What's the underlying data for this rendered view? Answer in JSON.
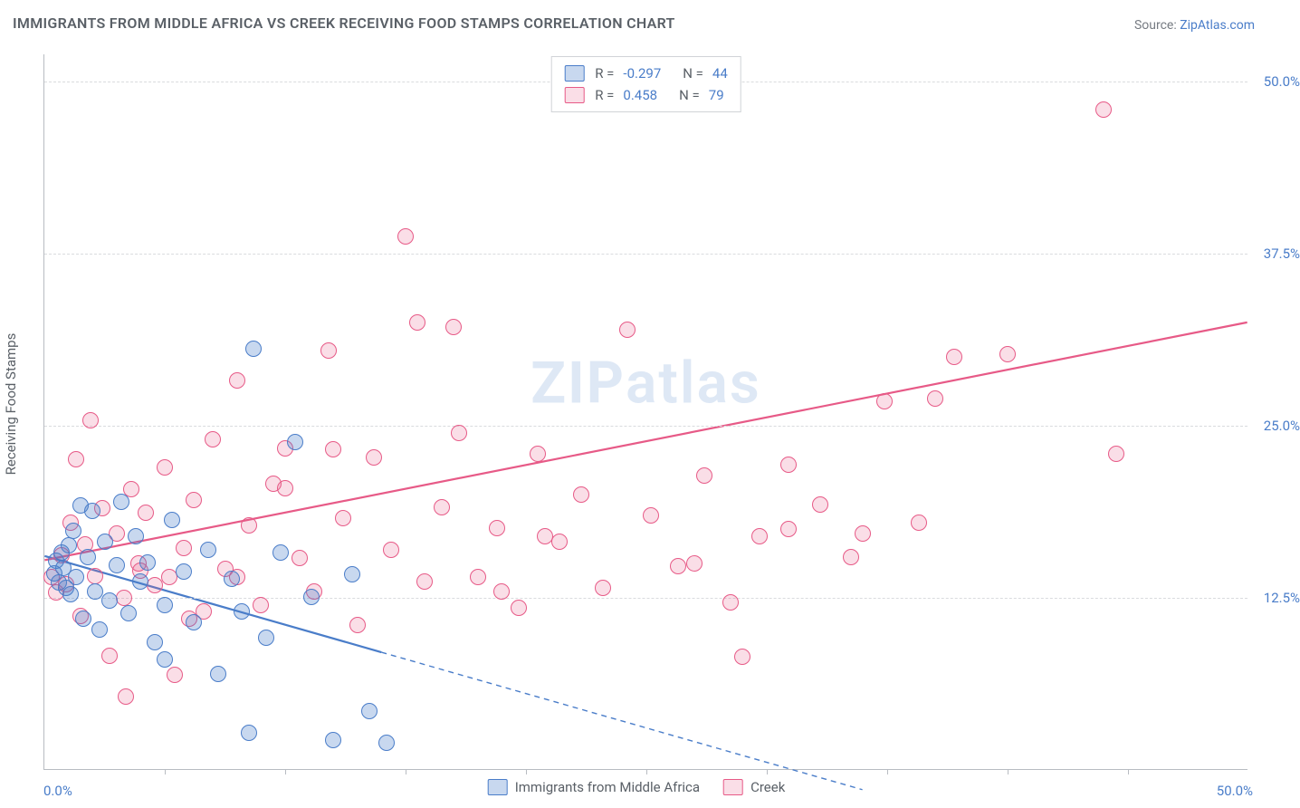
{
  "title": "IMMIGRANTS FROM MIDDLE AFRICA VS CREEK RECEIVING FOOD STAMPS CORRELATION CHART",
  "source_label": "Source:",
  "source_name": "ZipAtlas.com",
  "ylabel": "Receiving Food Stamps",
  "watermark": "ZIPatlas",
  "x_axis": {
    "min": 0,
    "max": 50,
    "label_min": "0.0%",
    "label_max": "50.0%",
    "tick_step": 5
  },
  "y_axis": {
    "min": 0,
    "max": 52,
    "ticks": [
      12.5,
      25.0,
      37.5,
      50.0
    ],
    "tick_labels": [
      "12.5%",
      "25.0%",
      "37.5%",
      "50.0%"
    ]
  },
  "series": {
    "a": {
      "name": "Immigrants from Middle Africa",
      "r_label": "R =",
      "r": "-0.297",
      "n_label": "N =",
      "n": "44",
      "stroke": "#4a7dc9",
      "fill": "rgba(74,125,201,0.30)",
      "marker_r": 9,
      "trend": {
        "x1": 0,
        "y1": 15.5,
        "x2_solid": 14,
        "y2_solid": 8.5,
        "x2_dash": 34,
        "y2_dash": -1.5
      }
    },
    "b": {
      "name": "Creek",
      "r_label": "R =",
      "r": "0.458",
      "n_label": "N =",
      "n": "79",
      "stroke": "#e75a87",
      "fill": "rgba(231,90,135,0.20)",
      "marker_r": 9,
      "trend": {
        "x1": 0,
        "y1": 15.2,
        "x2_solid": 50,
        "y2_solid": 32.5
      }
    }
  },
  "points_a": [
    [
      0.4,
      14.3
    ],
    [
      0.5,
      15.2
    ],
    [
      0.6,
      13.6
    ],
    [
      0.7,
      15.8
    ],
    [
      0.8,
      14.7
    ],
    [
      0.9,
      13.2
    ],
    [
      1.0,
      16.3
    ],
    [
      1.1,
      12.8
    ],
    [
      1.2,
      17.4
    ],
    [
      1.3,
      14.0
    ],
    [
      1.5,
      19.2
    ],
    [
      1.6,
      11.0
    ],
    [
      1.8,
      15.5
    ],
    [
      2.0,
      18.8
    ],
    [
      2.1,
      13.0
    ],
    [
      2.3,
      10.2
    ],
    [
      2.5,
      16.6
    ],
    [
      2.7,
      12.3
    ],
    [
      3.0,
      14.9
    ],
    [
      3.2,
      19.5
    ],
    [
      3.5,
      11.4
    ],
    [
      3.8,
      17.0
    ],
    [
      4.0,
      13.7
    ],
    [
      4.3,
      15.1
    ],
    [
      4.6,
      9.3
    ],
    [
      5.0,
      12.0
    ],
    [
      5.3,
      18.2
    ],
    [
      5.8,
      14.4
    ],
    [
      6.2,
      10.7
    ],
    [
      6.8,
      16.0
    ],
    [
      7.2,
      7.0
    ],
    [
      7.8,
      13.9
    ],
    [
      8.2,
      11.5
    ],
    [
      8.7,
      30.6
    ],
    [
      9.2,
      9.6
    ],
    [
      9.8,
      15.8
    ],
    [
      10.4,
      23.8
    ],
    [
      11.1,
      12.6
    ],
    [
      5.0,
      8.0
    ],
    [
      12.0,
      2.2
    ],
    [
      12.8,
      14.2
    ],
    [
      8.5,
      2.7
    ],
    [
      14.2,
      2.0
    ],
    [
      13.5,
      4.3
    ]
  ],
  "points_b": [
    [
      0.3,
      14.0
    ],
    [
      0.5,
      12.9
    ],
    [
      0.7,
      15.6
    ],
    [
      0.9,
      13.5
    ],
    [
      1.1,
      18.0
    ],
    [
      1.3,
      22.6
    ],
    [
      1.5,
      11.2
    ],
    [
      1.7,
      16.4
    ],
    [
      1.9,
      25.4
    ],
    [
      2.1,
      14.1
    ],
    [
      2.4,
      19.0
    ],
    [
      2.7,
      8.3
    ],
    [
      3.0,
      17.2
    ],
    [
      3.3,
      12.5
    ],
    [
      3.6,
      20.4
    ],
    [
      3.9,
      15.0
    ],
    [
      4.2,
      18.7
    ],
    [
      4.6,
      13.4
    ],
    [
      5.0,
      22.0
    ],
    [
      5.4,
      6.9
    ],
    [
      5.8,
      16.1
    ],
    [
      6.2,
      19.6
    ],
    [
      6.6,
      11.5
    ],
    [
      7.0,
      24.0
    ],
    [
      7.5,
      14.6
    ],
    [
      8.0,
      28.3
    ],
    [
      8.5,
      17.8
    ],
    [
      9.0,
      12.0
    ],
    [
      9.5,
      20.8
    ],
    [
      10.0,
      23.4
    ],
    [
      10.6,
      15.4
    ],
    [
      11.2,
      13.0
    ],
    [
      11.8,
      30.5
    ],
    [
      12.4,
      18.3
    ],
    [
      13.0,
      10.5
    ],
    [
      13.7,
      22.7
    ],
    [
      14.4,
      16.0
    ],
    [
      15.0,
      38.8
    ],
    [
      15.8,
      13.7
    ],
    [
      16.5,
      19.1
    ],
    [
      17.2,
      24.5
    ],
    [
      18.0,
      14.0
    ],
    [
      18.8,
      17.6
    ],
    [
      19.7,
      11.8
    ],
    [
      20.5,
      23.0
    ],
    [
      21.4,
      16.6
    ],
    [
      22.3,
      20.0
    ],
    [
      23.2,
      13.2
    ],
    [
      24.2,
      32.0
    ],
    [
      25.2,
      18.5
    ],
    [
      26.3,
      14.8
    ],
    [
      27.4,
      21.4
    ],
    [
      28.5,
      12.2
    ],
    [
      29.7,
      17.0
    ],
    [
      30.9,
      22.2
    ],
    [
      32.2,
      19.3
    ],
    [
      33.5,
      15.5
    ],
    [
      34.9,
      26.8
    ],
    [
      36.3,
      18.0
    ],
    [
      37.8,
      30.0
    ],
    [
      34.0,
      17.2
    ],
    [
      29.0,
      8.2
    ],
    [
      37.0,
      27.0
    ],
    [
      44.5,
      23.0
    ],
    [
      40.0,
      30.2
    ],
    [
      30.9,
      17.5
    ],
    [
      44.0,
      48.0
    ],
    [
      19.0,
      13.0
    ],
    [
      20.8,
      17.0
    ],
    [
      17.0,
      32.2
    ],
    [
      5.2,
      14.0
    ],
    [
      6.0,
      11.0
    ],
    [
      4.0,
      14.5
    ],
    [
      15.5,
      32.5
    ],
    [
      10.0,
      20.5
    ],
    [
      12.0,
      23.3
    ],
    [
      8.0,
      14.0
    ],
    [
      3.4,
      5.3
    ],
    [
      27.0,
      15.0
    ]
  ],
  "bottom_legend": {
    "a": "Immigrants from Middle Africa",
    "b": "Creek"
  },
  "grid_color": "#d9dbde",
  "axis_color": "#b8bcc2",
  "background_color": "#ffffff",
  "title_fontsize": 16,
  "label_fontsize": 15,
  "line_width_solid": 2.2,
  "line_width_dash": 1.4,
  "dash_pattern": "6 5"
}
